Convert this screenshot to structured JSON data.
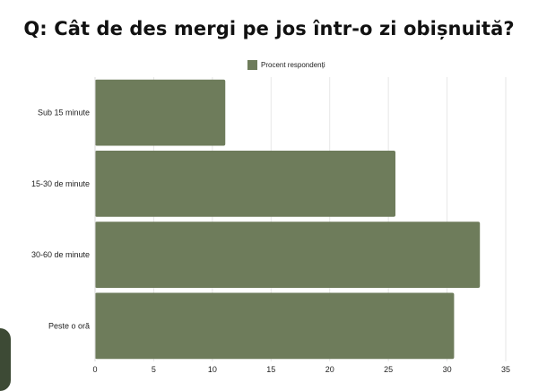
{
  "chart_data": {
    "type": "bar",
    "orientation": "horizontal",
    "title": "Q: Cât de des mergi pe jos într-o zi obișnuită?",
    "categories": [
      "Sub 15 minute",
      "15-30 de minute",
      "30-60 de minute",
      "Peste o oră"
    ],
    "series": [
      {
        "name": "Procent respondenți",
        "values": [
          11.1,
          25.6,
          32.8,
          30.6
        ],
        "color": "#6e7c5b"
      }
    ],
    "xlim": [
      0,
      35
    ],
    "xticks": [
      0,
      5,
      10,
      15,
      20,
      25,
      30,
      35
    ],
    "grid": true,
    "legend_position": "top-center"
  }
}
